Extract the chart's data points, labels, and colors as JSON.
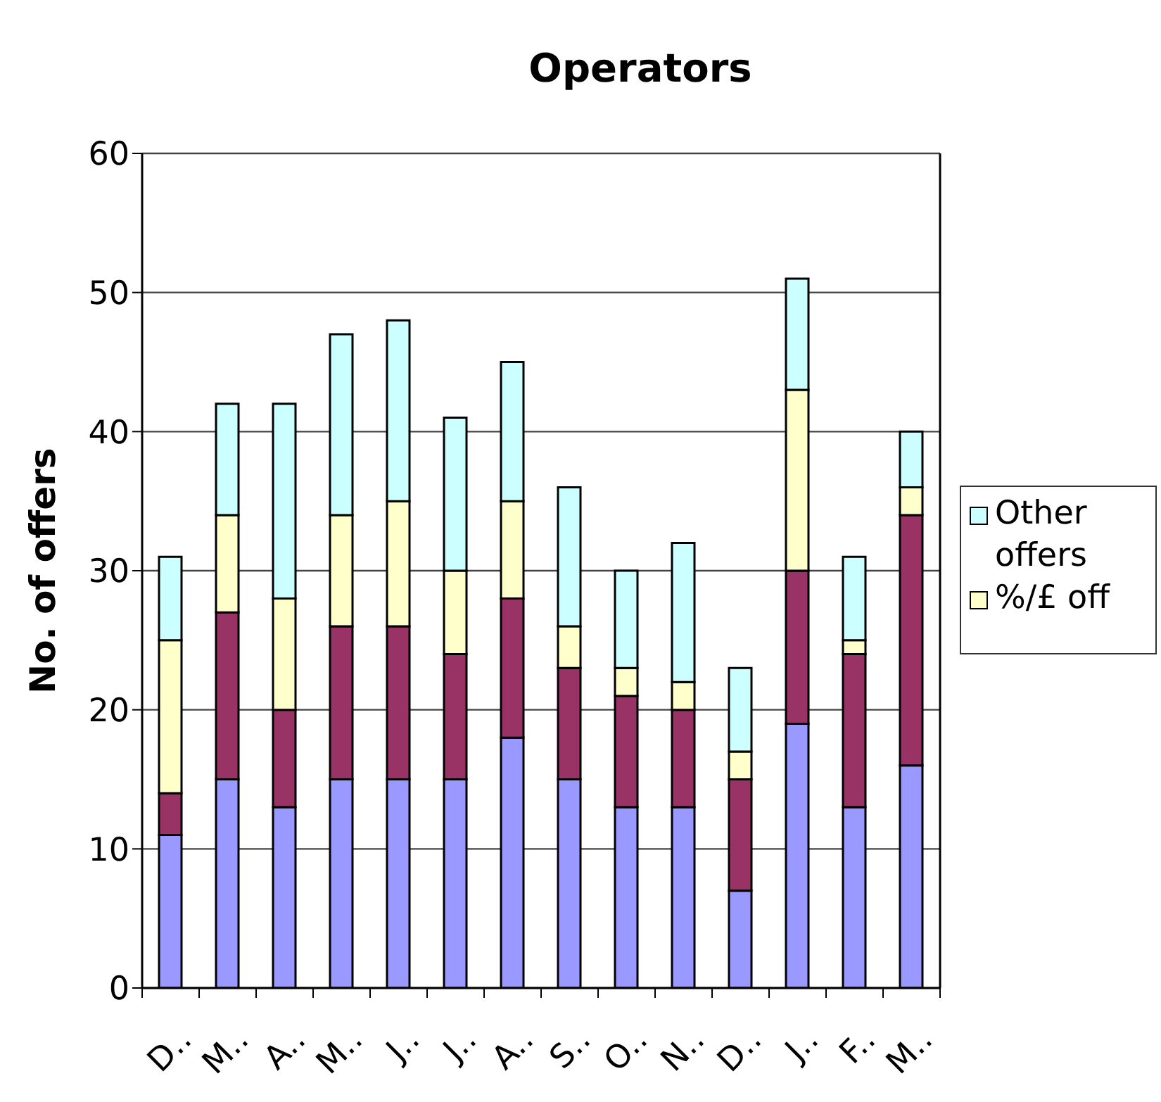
{
  "chart_data": {
    "type": "bar",
    "title": "Operators",
    "ylabel": "No. of offers",
    "categories": [
      "D..",
      "M..",
      "A..",
      "M..",
      "J..",
      "J..",
      "A..",
      "S..",
      "O..",
      "N..",
      "D..",
      "J..",
      "F..",
      "M.."
    ],
    "stacked": true,
    "series": [
      {
        "color": "#9999ff",
        "values": [
          11,
          15,
          13,
          15,
          15,
          15,
          18,
          15,
          13,
          13,
          7,
          19,
          13,
          16
        ]
      },
      {
        "color": "#993366",
        "values": [
          3,
          12,
          7,
          11,
          11,
          9,
          10,
          8,
          8,
          7,
          8,
          11,
          11,
          18
        ]
      },
      {
        "name": "%/£ off",
        "color": "#ffffcc",
        "values": [
          11,
          7,
          8,
          8,
          9,
          6,
          7,
          3,
          2,
          2,
          2,
          13,
          1,
          2
        ]
      },
      {
        "name": "Other offers",
        "color": "#ccffff",
        "values": [
          6,
          8,
          14,
          13,
          13,
          11,
          10,
          10,
          7,
          10,
          6,
          8,
          6,
          4
        ]
      }
    ],
    "ylim": [
      0,
      60
    ],
    "yticks": [
      0,
      10,
      20,
      30,
      40,
      50,
      60
    ],
    "grid": "y",
    "legend": "right"
  }
}
